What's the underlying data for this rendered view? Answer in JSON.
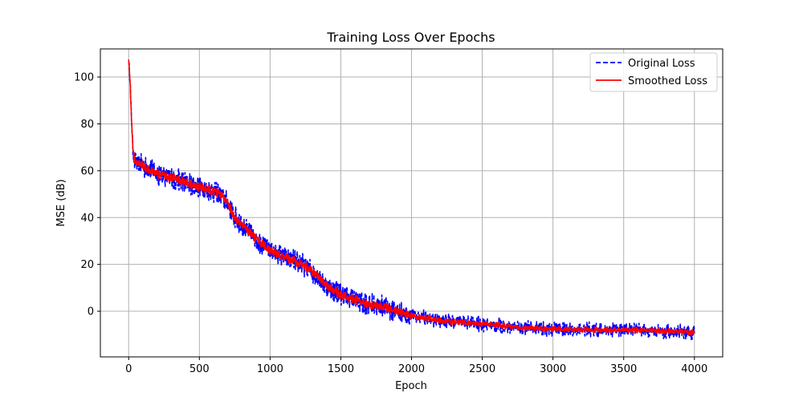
{
  "chart_data": {
    "type": "line",
    "title": "Training Loss Over Epochs",
    "xlabel": "Epoch",
    "ylabel": "MSE (dB)",
    "xlim": [
      -200,
      4200
    ],
    "ylim": [
      -19.5,
      112
    ],
    "xticks": [
      0,
      500,
      1000,
      1500,
      2000,
      2500,
      3000,
      3500,
      4000
    ],
    "yticks": [
      0,
      20,
      40,
      60,
      80,
      100
    ],
    "grid": true,
    "legend_position": "top-right",
    "series": [
      {
        "name": "Original Loss",
        "color": "#0000ff",
        "style": "dashed",
        "noise": 4.0,
        "points": [
          [
            0,
            108
          ],
          [
            10,
            98
          ],
          [
            20,
            82
          ],
          [
            30,
            70
          ],
          [
            40,
            65
          ],
          [
            60,
            63
          ],
          [
            100,
            62
          ],
          [
            200,
            59
          ],
          [
            300,
            57
          ],
          [
            400,
            55
          ],
          [
            500,
            53
          ],
          [
            600,
            51
          ],
          [
            650,
            50
          ],
          [
            700,
            46
          ],
          [
            750,
            40
          ],
          [
            800,
            37
          ],
          [
            900,
            31
          ],
          [
            1000,
            26
          ],
          [
            1100,
            23
          ],
          [
            1200,
            21
          ],
          [
            1300,
            17
          ],
          [
            1400,
            11
          ],
          [
            1500,
            7
          ],
          [
            1600,
            5
          ],
          [
            1700,
            3
          ],
          [
            1800,
            2
          ],
          [
            1900,
            0
          ],
          [
            2000,
            -2
          ],
          [
            2100,
            -3
          ],
          [
            2200,
            -4
          ],
          [
            2300,
            -4.5
          ],
          [
            2400,
            -5
          ],
          [
            2500,
            -5.5
          ],
          [
            2600,
            -6
          ],
          [
            2700,
            -6.5
          ],
          [
            2800,
            -7
          ],
          [
            3000,
            -7.5
          ],
          [
            3200,
            -8
          ],
          [
            3500,
            -8
          ],
          [
            3800,
            -8.5
          ],
          [
            4000,
            -9
          ]
        ]
      },
      {
        "name": "Smoothed Loss",
        "color": "#ff0000",
        "style": "solid",
        "noise": 1.6,
        "points": [
          [
            0,
            108
          ],
          [
            10,
            98
          ],
          [
            20,
            82
          ],
          [
            30,
            70
          ],
          [
            40,
            65
          ],
          [
            60,
            63
          ],
          [
            100,
            62
          ],
          [
            200,
            59
          ],
          [
            300,
            57
          ],
          [
            400,
            55
          ],
          [
            500,
            53
          ],
          [
            600,
            51
          ],
          [
            650,
            50
          ],
          [
            700,
            46
          ],
          [
            750,
            40
          ],
          [
            800,
            37
          ],
          [
            900,
            31
          ],
          [
            1000,
            26
          ],
          [
            1100,
            23
          ],
          [
            1200,
            21
          ],
          [
            1300,
            17
          ],
          [
            1400,
            11
          ],
          [
            1500,
            7
          ],
          [
            1600,
            5
          ],
          [
            1700,
            3
          ],
          [
            1800,
            2
          ],
          [
            1900,
            0
          ],
          [
            2000,
            -2
          ],
          [
            2100,
            -3
          ],
          [
            2200,
            -4
          ],
          [
            2300,
            -4.5
          ],
          [
            2400,
            -5
          ],
          [
            2500,
            -5.5
          ],
          [
            2600,
            -6
          ],
          [
            2700,
            -6.5
          ],
          [
            2800,
            -7
          ],
          [
            3000,
            -7.5
          ],
          [
            3200,
            -8
          ],
          [
            3500,
            -8
          ],
          [
            3800,
            -8.5
          ],
          [
            4000,
            -9
          ]
        ]
      }
    ]
  }
}
